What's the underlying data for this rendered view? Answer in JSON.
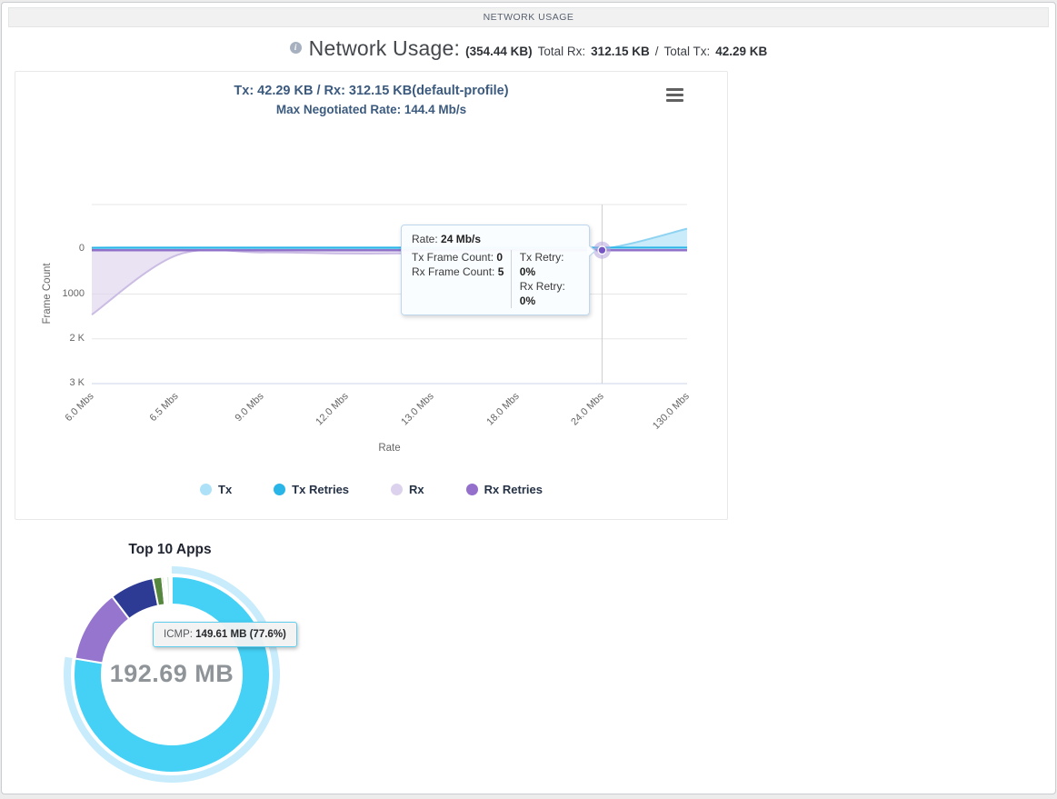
{
  "titlebar": {
    "label": "NETWORK USAGE"
  },
  "header": {
    "title": "Network Usage:",
    "total_bytes": "(354.44 KB)",
    "total_rx_label": "Total Rx:",
    "total_rx_value": "312.15 KB",
    "separator": "/",
    "total_tx_label": "Total Tx:",
    "total_tx_value": "42.29 KB"
  },
  "chart_panel": {
    "title": "Tx: 42.29 KB / Rx: 312.15 KB(default-profile)",
    "subtitle": "Max Negotiated Rate: 144.4 Mb/s",
    "tooltip": {
      "rate_label": "Rate:",
      "rate_value": "24 Mb/s",
      "tx_frame_label": "Tx Frame Count:",
      "tx_frame_value": "0",
      "tx_retry_label": "Tx Retry:",
      "tx_retry_value": "0%",
      "rx_frame_label": "Rx Frame Count:",
      "rx_frame_value": "5",
      "rx_retry_label": "Rx Retry:",
      "rx_retry_value": "0%"
    }
  },
  "legend": [
    {
      "label": "Tx",
      "color": "#ade1f7"
    },
    {
      "label": "Tx Retries",
      "color": "#29b5e8"
    },
    {
      "label": "Rx",
      "color": "#dcd2ee"
    },
    {
      "label": "Rx Retries",
      "color": "#9470cc"
    }
  ],
  "donut_panel": {
    "title": "Top 10 Apps",
    "center_label": "192.69 MB",
    "tooltip_label": "ICMP:",
    "tooltip_value": "149.61 MB (77.6%)"
  },
  "chart_data": [
    {
      "type": "area",
      "title": "Tx: 42.29 KB / Rx: 312.15 KB(default-profile)",
      "subtitle": "Max Negotiated Rate: 144.4 Mb/s",
      "xlabel": "Rate",
      "ylabel": "Frame Count",
      "x_categories": [
        "6.0 Mbs",
        "6.5 Mbs",
        "9.0 Mbs",
        "12.0 Mbs",
        "13.0 Mbs",
        "18.0 Mbs",
        "24.0 Mbs",
        "130.0 Mbs"
      ],
      "y_axis": {
        "inverted": true,
        "min": -1000,
        "max": 3000,
        "ticks": [
          {
            "label": "0",
            "value": 0
          },
          {
            "label": "1000",
            "value": 1000
          },
          {
            "label": "2 K",
            "value": 2000
          },
          {
            "label": "3 K",
            "value": 3000
          }
        ],
        "gridlines": [
          -1000,
          0,
          1000,
          2000,
          3000
        ]
      },
      "grid": true,
      "legend_position": "bottom",
      "series": [
        {
          "name": "Tx",
          "color": "#a9def6",
          "line_color": "#8ed3f2",
          "direction": "up",
          "values": [
            0,
            0,
            0,
            0,
            0,
            0,
            0,
            450
          ]
        },
        {
          "name": "Tx Retries",
          "color": "#29b5e8",
          "line_color": "#29b5e8",
          "direction": "up",
          "values": [
            0,
            0,
            0,
            0,
            0,
            0,
            0,
            0
          ]
        },
        {
          "name": "Rx",
          "color": "#dcd2ee",
          "line_color": "#cbbce4",
          "direction": "down",
          "values": [
            1450,
            120,
            60,
            85,
            75,
            30,
            5,
            5
          ]
        },
        {
          "name": "Rx Retries",
          "color": "#8f6fc8",
          "line_color": "#8f6fc8",
          "direction": "down",
          "values": [
            0,
            0,
            0,
            0,
            0,
            0,
            0,
            0
          ]
        }
      ],
      "hover": {
        "index": 6,
        "category": "24.0 Mbs",
        "rate": "24 Mb/s",
        "tx_frame_count": 0,
        "tx_retry_pct": "0%",
        "rx_frame_count": 5,
        "rx_retry_pct": "0%"
      }
    },
    {
      "type": "pie",
      "title": "Top 10 Apps",
      "center_label": "192.69 MB",
      "total": "192.69 MB",
      "halo_color": "#c8ecfb",
      "slices": [
        {
          "name": "ICMP",
          "percent": 77.6,
          "size": "149.61 MB",
          "color": "#45d0f5",
          "selected": true
        },
        {
          "name": "",
          "percent": 12.0,
          "color": "#9575cd"
        },
        {
          "name": "",
          "percent": 7.3,
          "color": "#2e3b95"
        },
        {
          "name": "",
          "percent": 1.5,
          "color": "#55873f"
        },
        {
          "name": "",
          "percent": 0.35,
          "color": "#9ccc65"
        },
        {
          "name": "",
          "percent": 0.2,
          "color": "#71aee3"
        },
        {
          "name": "",
          "percent": 0.2,
          "color": "#3d55c9"
        },
        {
          "name": "",
          "percent": 0.45,
          "color": "#bfe3c4"
        },
        {
          "name": "",
          "percent": 0.2,
          "color": "#8fd4ef"
        },
        {
          "name": "",
          "percent": 0.2,
          "color": "#dcefe0"
        }
      ],
      "tooltip": {
        "label": "ICMP:",
        "value": "149.61 MB (77.6%)"
      }
    }
  ]
}
